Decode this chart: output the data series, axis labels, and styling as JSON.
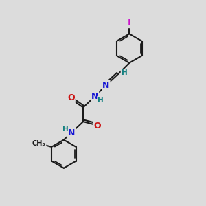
{
  "background_color": "#dcdcdc",
  "bond_color": "#1a1a1a",
  "bond_width": 1.5,
  "atom_colors": {
    "N": "#1414d4",
    "O": "#cc1414",
    "I": "#cc14cc",
    "H": "#148080"
  },
  "font_size_atom": 9,
  "font_size_h": 7.5
}
